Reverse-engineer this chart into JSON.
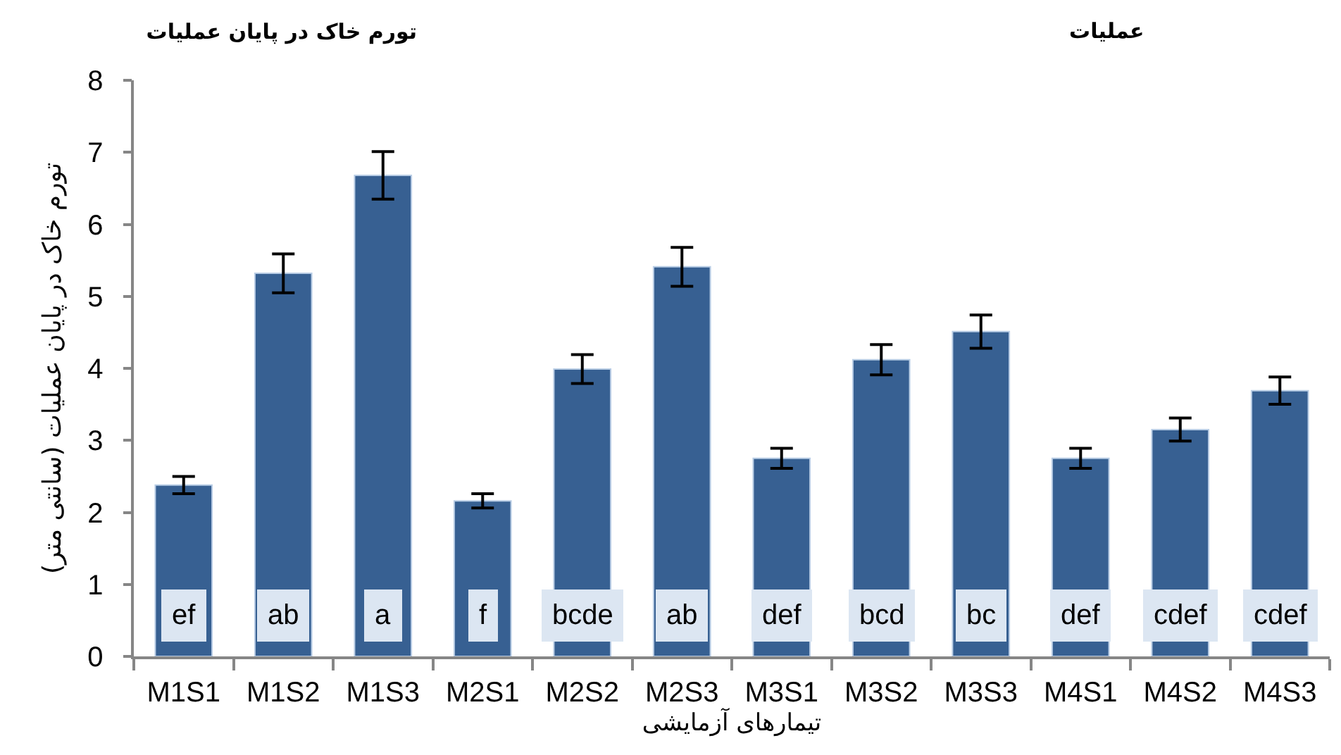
{
  "chart_data": {
    "type": "bar",
    "title": "تورم خاک در پایان عملیات",
    "subtitle": "عملیات",
    "xlabel": "تیمارهای آزمایشی",
    "ylabel": "تورم خاک در پایان عملیات (سانتی متر)",
    "categories": [
      "M1S1",
      "M1S2",
      "M1S3",
      "M2S1",
      "M2S2",
      "M2S3",
      "M3S1",
      "M3S2",
      "M3S3",
      "M4S1",
      "M4S2",
      "M4S3"
    ],
    "values": [
      2.38,
      5.32,
      6.68,
      2.16,
      3.99,
      5.41,
      2.75,
      4.12,
      4.51,
      2.75,
      3.15,
      3.69
    ],
    "errors": [
      0.12,
      0.27,
      0.33,
      0.1,
      0.2,
      0.27,
      0.14,
      0.21,
      0.23,
      0.14,
      0.16,
      0.19
    ],
    "color": "#376092",
    "ylim": [
      0,
      8
    ],
    "yticks": [
      0,
      1,
      2,
      3,
      4,
      5,
      6,
      7,
      8
    ],
    "annotations": [
      "ef",
      "ab",
      "a",
      "f",
      "bcde",
      "ab",
      "def",
      "bcd",
      "bc",
      "def",
      "cdef",
      "cdef"
    ]
  }
}
